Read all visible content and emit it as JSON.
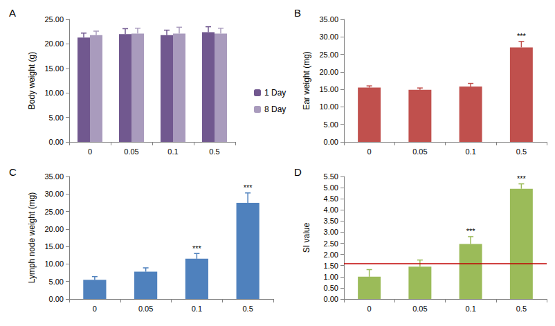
{
  "chart_data": [
    {
      "type": "bar",
      "title": "A",
      "y_label": "Body weight (g)",
      "categories": [
        "0",
        "0.05",
        "0.1",
        "0.5"
      ],
      "series": [
        {
          "name": "1 Day",
          "color": "#71588f",
          "values": [
            21.3,
            22.0,
            21.8,
            22.4
          ],
          "errors": [
            0.9,
            1.1,
            1.0,
            1.1
          ]
        },
        {
          "name": "8 Day",
          "color": "#a99bbd",
          "values": [
            21.8,
            22.1,
            22.1,
            22.1
          ],
          "errors": [
            0.8,
            1.1,
            1.3,
            1.1
          ]
        }
      ],
      "legend": "right",
      "grid": false,
      "ylim": [
        0,
        25
      ],
      "yticks": [
        {
          "value": 0,
          "label": "0.00"
        },
        {
          "value": 5,
          "label": "5.00"
        },
        {
          "value": 10,
          "label": "10.00"
        },
        {
          "value": 15,
          "label": "15.00"
        },
        {
          "value": 20,
          "label": "20.00"
        },
        {
          "value": 25,
          "label": "25.00"
        }
      ]
    },
    {
      "type": "bar",
      "title": "B",
      "y_label": "Ear weight (mg)",
      "categories": [
        "0",
        "0.05",
        "0.1",
        "0.5"
      ],
      "series": [
        {
          "color": "#c0504d",
          "values": [
            15.5,
            14.9,
            15.8,
            27.0
          ],
          "errors": [
            0.5,
            0.5,
            0.9,
            1.7
          ]
        }
      ],
      "significance": [
        null,
        null,
        null,
        "***"
      ],
      "grid": false,
      "ylim": [
        0,
        35
      ],
      "yticks": [
        {
          "value": 0,
          "label": "0.00"
        },
        {
          "value": 5,
          "label": "5.00"
        },
        {
          "value": 10,
          "label": "10.00"
        },
        {
          "value": 15,
          "label": "15.00"
        },
        {
          "value": 20,
          "label": "20.00"
        },
        {
          "value": 25,
          "label": "25.00"
        },
        {
          "value": 30,
          "label": "30.00"
        },
        {
          "value": 35,
          "label": "35.00"
        }
      ]
    },
    {
      "type": "bar",
      "title": "C",
      "y_label": "Lymph node weight (mg)",
      "categories": [
        "0",
        "0.05",
        "0.1",
        "0.5"
      ],
      "series": [
        {
          "color": "#4f81bd",
          "values": [
            5.5,
            7.8,
            11.5,
            27.5
          ],
          "errors": [
            0.9,
            1.1,
            1.5,
            2.8
          ]
        }
      ],
      "significance": [
        null,
        null,
        "***",
        "***"
      ],
      "grid": false,
      "ylim": [
        0,
        35
      ],
      "yticks": [
        {
          "value": 0,
          "label": "0.00"
        },
        {
          "value": 5,
          "label": "5.00"
        },
        {
          "value": 10,
          "label": "10.00"
        },
        {
          "value": 15,
          "label": "15.00"
        },
        {
          "value": 20,
          "label": "20.00"
        },
        {
          "value": 25,
          "label": "25.00"
        },
        {
          "value": 30,
          "label": "30.00"
        },
        {
          "value": 35,
          "label": "35.00"
        }
      ]
    },
    {
      "type": "bar",
      "title": "D",
      "y_label": "SI value",
      "categories": [
        "0",
        "0.05",
        "0.1",
        "0.5"
      ],
      "series": [
        {
          "color": "#9bbb59",
          "values": [
            1.0,
            1.45,
            2.47,
            4.95
          ],
          "errors": [
            0.32,
            0.3,
            0.33,
            0.22
          ]
        }
      ],
      "significance": [
        null,
        null,
        "***",
        "***"
      ],
      "reference_line": 1.6,
      "grid": false,
      "ylim": [
        0,
        5.5
      ],
      "yticks": [
        {
          "value": 0,
          "label": "0.00"
        },
        {
          "value": 0.5,
          "label": "0.50"
        },
        {
          "value": 1,
          "label": "1.00"
        },
        {
          "value": 1.5,
          "label": "1.50"
        },
        {
          "value": 2,
          "label": "2.00"
        },
        {
          "value": 2.5,
          "label": "2.50"
        },
        {
          "value": 3,
          "label": "3.00"
        },
        {
          "value": 3.5,
          "label": "3.50"
        },
        {
          "value": 4,
          "label": "4.00"
        },
        {
          "value": 4.5,
          "label": "4.50"
        },
        {
          "value": 5,
          "label": "5.00"
        },
        {
          "value": 5.5,
          "label": "5.50"
        }
      ]
    }
  ]
}
